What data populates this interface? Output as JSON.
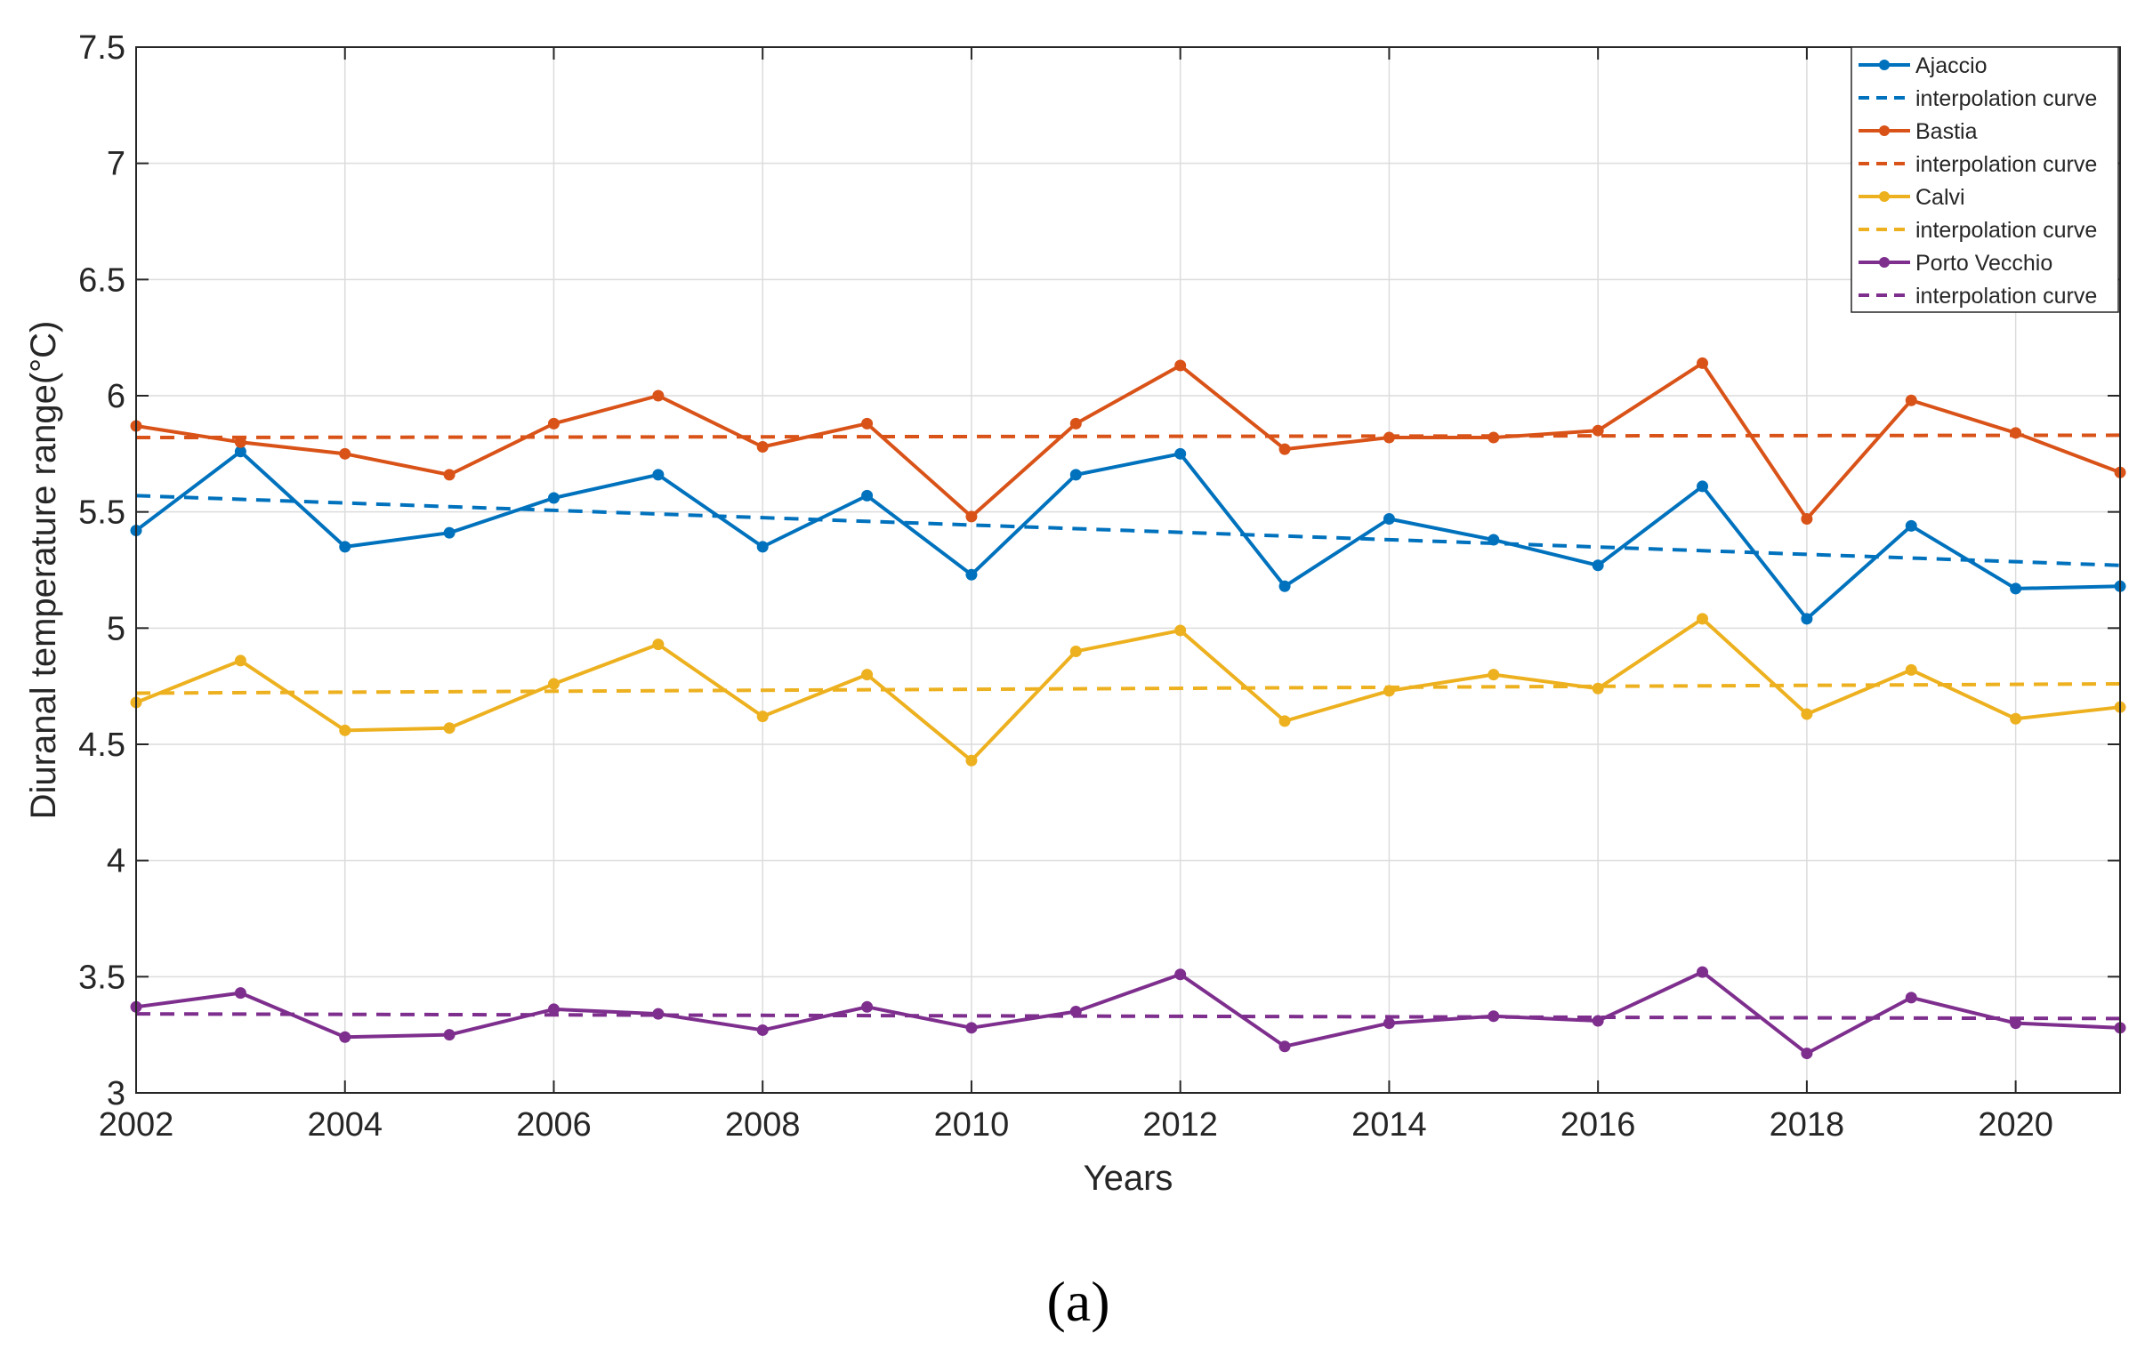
{
  "chart_data": {
    "type": "line",
    "title": "",
    "xlabel": "Years",
    "ylabel": "Diuranal temperature range(°C)",
    "x": [
      2002,
      2003,
      2004,
      2005,
      2006,
      2007,
      2008,
      2009,
      2010,
      2011,
      2012,
      2013,
      2014,
      2015,
      2016,
      2017,
      2018,
      2019,
      2020,
      2021
    ],
    "xlim": [
      2002,
      2021
    ],
    "ylim": [
      3,
      7.5
    ],
    "xticks": [
      2002,
      2004,
      2006,
      2008,
      2010,
      2012,
      2014,
      2016,
      2018,
      2020
    ],
    "xtick_labels": [
      "2002",
      "2004",
      "2006",
      "2008",
      "2010",
      "2012",
      "2014",
      "2016",
      "2018",
      "2020"
    ],
    "yticks": [
      3,
      3.5,
      4,
      4.5,
      5,
      5.5,
      6,
      6.5,
      7,
      7.5
    ],
    "ytick_labels": [
      "3",
      "3.5",
      "4",
      "4.5",
      "5",
      "5.5",
      "6",
      "6.5",
      "7",
      "7.5"
    ],
    "grid": true,
    "legend_position": "top-right",
    "series": [
      {
        "name": "Ajaccio",
        "color": "#0072BD",
        "values": [
          5.42,
          5.76,
          5.35,
          5.41,
          5.56,
          5.66,
          5.35,
          5.57,
          5.23,
          5.66,
          5.75,
          5.18,
          5.47,
          5.38,
          5.27,
          5.61,
          5.04,
          5.44,
          5.17,
          5.18
        ],
        "trend": {
          "name": "interpolation curve",
          "start": 5.57,
          "end": 5.27
        }
      },
      {
        "name": "Bastia",
        "color": "#D95319",
        "values": [
          5.87,
          5.8,
          5.75,
          5.66,
          5.88,
          6.0,
          5.78,
          5.88,
          5.48,
          5.88,
          6.13,
          5.77,
          5.82,
          5.82,
          5.85,
          6.14,
          5.47,
          5.98,
          5.84,
          5.67
        ],
        "trend": {
          "name": "interpolation curve",
          "start": 5.82,
          "end": 5.83
        }
      },
      {
        "name": "Calvi",
        "color": "#EDB120",
        "values": [
          4.68,
          4.86,
          4.56,
          4.57,
          4.76,
          4.93,
          4.62,
          4.8,
          4.43,
          4.9,
          4.99,
          4.6,
          4.73,
          4.8,
          4.74,
          5.04,
          4.63,
          4.82,
          4.61,
          4.66
        ],
        "trend": {
          "name": "interpolation curve",
          "start": 4.72,
          "end": 4.76
        }
      },
      {
        "name": "Porto Vecchio",
        "color": "#7E2F8E",
        "values": [
          3.37,
          3.43,
          3.24,
          3.25,
          3.36,
          3.34,
          3.27,
          3.37,
          3.28,
          3.35,
          3.51,
          3.2,
          3.3,
          3.33,
          3.31,
          3.52,
          3.17,
          3.41,
          3.3,
          3.28
        ],
        "trend": {
          "name": "interpolation curve",
          "start": 3.34,
          "end": 3.32
        }
      }
    ],
    "panel_label": "(a)"
  }
}
